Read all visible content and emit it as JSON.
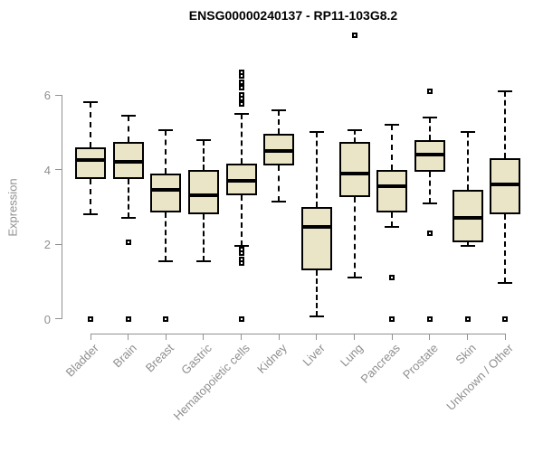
{
  "chart_data": {
    "type": "boxplot",
    "title": "ENSG00000240137 - RP11-103G8.2",
    "ylabel": "Expression",
    "xlabel": "",
    "ylim": [
      0,
      6.6
    ],
    "yticks": [
      0,
      2,
      4,
      6
    ],
    "grid": false,
    "legend": "none",
    "categories": [
      "Bladder",
      "Brain",
      "Breast",
      "Gastric",
      "Hematopoietic cells",
      "Kidney",
      "Liver",
      "Lung",
      "Pancreas",
      "Prostate",
      "Skin",
      "Unknown / Other"
    ],
    "series": [
      {
        "category": "Bladder",
        "whisker_low": 2.8,
        "q1": 3.75,
        "median": 4.25,
        "q3": 4.6,
        "whisker_high": 5.8,
        "outliers": [
          0
        ]
      },
      {
        "category": "Brain",
        "whisker_low": 2.7,
        "q1": 3.75,
        "median": 4.2,
        "q3": 4.75,
        "whisker_high": 5.45,
        "outliers": [
          2.05,
          0
        ]
      },
      {
        "category": "Breast",
        "whisker_low": 1.55,
        "q1": 2.85,
        "median": 3.45,
        "q3": 3.9,
        "whisker_high": 5.05,
        "outliers": [
          0
        ]
      },
      {
        "category": "Gastric",
        "whisker_low": 1.55,
        "q1": 2.8,
        "median": 3.3,
        "q3": 4.0,
        "whisker_high": 4.8,
        "outliers": []
      },
      {
        "category": "Hematopoietic cells",
        "whisker_low": 1.95,
        "q1": 3.3,
        "median": 3.7,
        "q3": 4.15,
        "whisker_high": 5.5,
        "outliers": [
          6.6,
          6.5,
          6.35,
          6.2,
          6.0,
          5.9,
          5.75,
          1.85,
          1.75,
          1.6,
          1.5,
          0
        ]
      },
      {
        "category": "Kidney",
        "whisker_low": 3.15,
        "q1": 4.1,
        "median": 4.5,
        "q3": 4.95,
        "whisker_high": 5.6,
        "outliers": []
      },
      {
        "category": "Liver",
        "whisker_low": 0.05,
        "q1": 1.3,
        "median": 2.45,
        "q3": 3.0,
        "whisker_high": 5.0,
        "outliers": []
      },
      {
        "category": "Lung",
        "whisker_low": 1.1,
        "q1": 3.25,
        "median": 3.9,
        "q3": 4.75,
        "whisker_high": 5.05,
        "outliers": [
          7.6
        ]
      },
      {
        "category": "Pancreas",
        "whisker_low": 2.45,
        "q1": 2.85,
        "median": 3.55,
        "q3": 4.0,
        "whisker_high": 5.2,
        "outliers": [
          1.1,
          0
        ]
      },
      {
        "category": "Prostate",
        "whisker_low": 3.1,
        "q1": 3.95,
        "median": 4.4,
        "q3": 4.8,
        "whisker_high": 5.4,
        "outliers": [
          6.1,
          2.3,
          0
        ]
      },
      {
        "category": "Skin",
        "whisker_low": 1.95,
        "q1": 2.05,
        "median": 2.7,
        "q3": 3.45,
        "whisker_high": 5.0,
        "outliers": [
          0
        ]
      },
      {
        "category": "Unknown / Other",
        "whisker_low": 0.95,
        "q1": 2.8,
        "median": 3.6,
        "q3": 4.3,
        "whisker_high": 6.1,
        "outliers": [
          0
        ]
      }
    ],
    "colors": {
      "box_fill": "#EBE5C8",
      "box_border": "#000000",
      "median": "#000000",
      "axis": "#919191",
      "tick_label": "#8f8f8f",
      "title": "#000000",
      "background": "#ffffff"
    }
  }
}
